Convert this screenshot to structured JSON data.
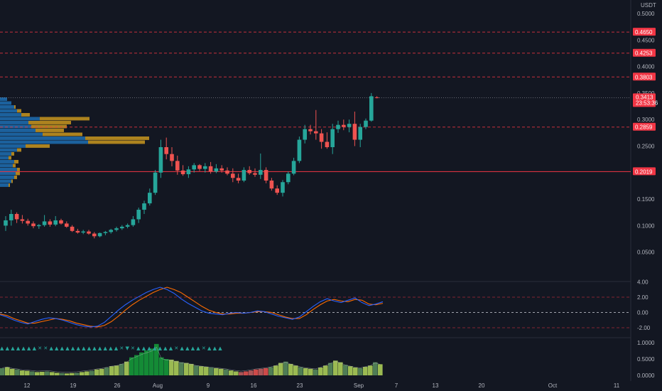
{
  "currency": "USDT",
  "colors": {
    "background": "#131722",
    "grid": "#1e222d",
    "axis_text": "#b2b5be",
    "up": "#26a69a",
    "down": "#ef5350",
    "level": "#f23645",
    "macd": "#2962ff",
    "signal": "#ff6d00",
    "vp_blue": "#1f6fb3",
    "vp_gold": "#c9961f",
    "hist_bright_green": "#15a03a",
    "hist_lime": "#b4d75a"
  },
  "price_axis": {
    "ticks": [
      "0.5000",
      "0.4500",
      "0.4000",
      "0.3500",
      "0.3000",
      "0.2500",
      "0.2000",
      "0.1500",
      "0.1000",
      "0.0500"
    ],
    "min": 0.0,
    "max": 0.5
  },
  "price_levels": [
    {
      "label": "0.4650",
      "value": 0.465,
      "style": "dashed"
    },
    {
      "label": "0.4253",
      "value": 0.4253,
      "style": "dashed"
    },
    {
      "label": "0.3803",
      "value": 0.3803,
      "style": "dashed"
    },
    {
      "label": "0.2859",
      "value": 0.2859,
      "style": "dashed"
    },
    {
      "label": "0.2019",
      "value": 0.2019,
      "style": "solid"
    }
  ],
  "current_price": {
    "label": "0.3413",
    "countdown": "23:53:36",
    "value": 0.3413
  },
  "oscillator_axis": {
    "ticks": [
      "4.00",
      "2.00",
      "0.00",
      "-2.00"
    ],
    "min": -4,
    "max": 4,
    "bands": [
      2,
      -2
    ],
    "zero": 0
  },
  "histogram_axis": {
    "ticks": [
      "1.0000",
      "0.5000",
      "0.0000"
    ],
    "min": 0,
    "max": 1
  },
  "time_axis": {
    "labels": [
      "12",
      "19",
      "26",
      "Aug",
      "9",
      "16",
      "23",
      "Sep",
      "7",
      "13",
      "20",
      "Oct",
      "11"
    ]
  },
  "chart_data": {
    "type": "candlestick",
    "description_fields": [
      "open",
      "high",
      "low",
      "close"
    ],
    "candles": [
      [
        0.1,
        0.118,
        0.09,
        0.11
      ],
      [
        0.11,
        0.13,
        0.1,
        0.122
      ],
      [
        0.122,
        0.125,
        0.105,
        0.112
      ],
      [
        0.112,
        0.12,
        0.104,
        0.109
      ],
      [
        0.109,
        0.113,
        0.1,
        0.104
      ],
      [
        0.104,
        0.108,
        0.095,
        0.099
      ],
      [
        0.099,
        0.103,
        0.094,
        0.101
      ],
      [
        0.101,
        0.12,
        0.098,
        0.108
      ],
      [
        0.108,
        0.112,
        0.098,
        0.102
      ],
      [
        0.102,
        0.118,
        0.099,
        0.11
      ],
      [
        0.11,
        0.113,
        0.102,
        0.104
      ],
      [
        0.104,
        0.108,
        0.096,
        0.098
      ],
      [
        0.098,
        0.101,
        0.088,
        0.09
      ],
      [
        0.09,
        0.094,
        0.085,
        0.087
      ],
      [
        0.087,
        0.092,
        0.084,
        0.089
      ],
      [
        0.089,
        0.092,
        0.083,
        0.085
      ],
      [
        0.085,
        0.088,
        0.076,
        0.08
      ],
      [
        0.08,
        0.087,
        0.078,
        0.086
      ],
      [
        0.086,
        0.09,
        0.082,
        0.088
      ],
      [
        0.088,
        0.094,
        0.085,
        0.092
      ],
      [
        0.092,
        0.098,
        0.089,
        0.095
      ],
      [
        0.095,
        0.101,
        0.092,
        0.098
      ],
      [
        0.098,
        0.104,
        0.095,
        0.101
      ],
      [
        0.101,
        0.118,
        0.098,
        0.112
      ],
      [
        0.112,
        0.134,
        0.105,
        0.13
      ],
      [
        0.13,
        0.147,
        0.122,
        0.142
      ],
      [
        0.142,
        0.17,
        0.138,
        0.162
      ],
      [
        0.162,
        0.205,
        0.158,
        0.2
      ],
      [
        0.2,
        0.262,
        0.19,
        0.248
      ],
      [
        0.248,
        0.266,
        0.225,
        0.235
      ],
      [
        0.235,
        0.248,
        0.212,
        0.222
      ],
      [
        0.222,
        0.232,
        0.196,
        0.204
      ],
      [
        0.204,
        0.214,
        0.194,
        0.197
      ],
      [
        0.197,
        0.212,
        0.19,
        0.206
      ],
      [
        0.206,
        0.218,
        0.2,
        0.214
      ],
      [
        0.214,
        0.216,
        0.203,
        0.207
      ],
      [
        0.207,
        0.218,
        0.2,
        0.212
      ],
      [
        0.212,
        0.22,
        0.198,
        0.202
      ],
      [
        0.202,
        0.216,
        0.199,
        0.208
      ],
      [
        0.208,
        0.214,
        0.2,
        0.204
      ],
      [
        0.204,
        0.21,
        0.195,
        0.198
      ],
      [
        0.198,
        0.208,
        0.182,
        0.19
      ],
      [
        0.19,
        0.198,
        0.18,
        0.185
      ],
      [
        0.185,
        0.21,
        0.182,
        0.205
      ],
      [
        0.205,
        0.212,
        0.196,
        0.199
      ],
      [
        0.199,
        0.208,
        0.192,
        0.196
      ],
      [
        0.196,
        0.236,
        0.188,
        0.205
      ],
      [
        0.205,
        0.21,
        0.18,
        0.185
      ],
      [
        0.185,
        0.19,
        0.166,
        0.17
      ],
      [
        0.17,
        0.176,
        0.158,
        0.162
      ],
      [
        0.162,
        0.186,
        0.155,
        0.182
      ],
      [
        0.182,
        0.202,
        0.178,
        0.198
      ],
      [
        0.198,
        0.228,
        0.195,
        0.222
      ],
      [
        0.222,
        0.268,
        0.218,
        0.262
      ],
      [
        0.262,
        0.29,
        0.255,
        0.282
      ],
      [
        0.282,
        0.29,
        0.272,
        0.278
      ],
      [
        0.278,
        0.318,
        0.262,
        0.274
      ],
      [
        0.274,
        0.282,
        0.245,
        0.258
      ],
      [
        0.258,
        0.276,
        0.245,
        0.248
      ],
      [
        0.248,
        0.292,
        0.235,
        0.282
      ],
      [
        0.282,
        0.298,
        0.275,
        0.29
      ],
      [
        0.29,
        0.3,
        0.28,
        0.286
      ],
      [
        0.286,
        0.3,
        0.276,
        0.292
      ],
      [
        0.292,
        0.315,
        0.25,
        0.262
      ],
      [
        0.262,
        0.292,
        0.248,
        0.286
      ],
      [
        0.286,
        0.302,
        0.282,
        0.298
      ],
      [
        0.298,
        0.35,
        0.296,
        0.344
      ],
      [
        0.342,
        0.344,
        0.34,
        0.3413
      ]
    ],
    "oscillator": {
      "fast": [
        -0.3,
        -0.6,
        -1.0,
        -1.3,
        -1.5,
        -1.2,
        -0.9,
        -0.7,
        -0.8,
        -1.0,
        -1.3,
        -1.6,
        -1.8,
        -1.9,
        -1.8,
        -1.3,
        -0.5,
        0.3,
        1.0,
        1.6,
        2.1,
        2.6,
        3.0,
        3.3,
        3.0,
        2.5,
        1.8,
        1.2,
        0.7,
        0.2,
        -0.1,
        -0.2,
        -0.3,
        -0.1,
        0.0,
        -0.1,
        0.0,
        0.2,
        0.1,
        -0.2,
        -0.5,
        -0.7,
        -0.9,
        -0.6,
        0.1,
        0.8,
        1.4,
        1.8,
        1.5,
        1.3,
        1.6,
        1.9,
        1.3,
        0.9,
        1.1,
        1.4
      ],
      "slow": [
        -0.2,
        -0.4,
        -0.8,
        -1.1,
        -1.4,
        -1.4,
        -1.2,
        -1.0,
        -0.8,
        -0.9,
        -1.1,
        -1.4,
        -1.6,
        -1.8,
        -1.9,
        -1.7,
        -1.2,
        -0.5,
        0.3,
        1.0,
        1.6,
        2.1,
        2.6,
        3.0,
        3.3,
        3.0,
        2.6,
        2.0,
        1.4,
        0.8,
        0.3,
        0.0,
        -0.2,
        -0.2,
        -0.1,
        -0.1,
        0.0,
        0.1,
        0.1,
        0.0,
        -0.3,
        -0.6,
        -0.8,
        -0.8,
        -0.3,
        0.4,
        1.0,
        1.5,
        1.7,
        1.5,
        1.4,
        1.7,
        1.6,
        1.1,
        1.0,
        1.2
      ]
    },
    "histogram": {
      "values": [
        0.22,
        0.25,
        0.2,
        0.18,
        0.15,
        0.14,
        0.12,
        0.1,
        0.11,
        0.12,
        0.1,
        0.08,
        0.07,
        0.06,
        0.07,
        0.08,
        0.1,
        0.12,
        0.14,
        0.18,
        0.2,
        0.24,
        0.28,
        0.3,
        0.35,
        0.42,
        0.55,
        0.62,
        0.7,
        0.76,
        0.82,
        0.96,
        0.55,
        0.5,
        0.48,
        0.44,
        0.4,
        0.38,
        0.35,
        0.3,
        0.28,
        0.26,
        0.24,
        0.22,
        0.2,
        0.18,
        0.15,
        0.12,
        0.1,
        0.12,
        0.15,
        0.18,
        0.2,
        0.22,
        0.25,
        0.3,
        0.38,
        0.42,
        0.35,
        0.3,
        0.25,
        0.22,
        0.2,
        0.18,
        0.24,
        0.3,
        0.38,
        0.45,
        0.4,
        0.32,
        0.28,
        0.24,
        0.22,
        0.26,
        0.3,
        0.4,
        0.34
      ],
      "markers_text": "▲ ▲ ▲ ▲ ▲ ▲ ▲ ✕ ✕  ▲ ▲ ▲ ▲ ▲ ▲ ▲ ▲ ▲ ▲ ▲ ▲ ▲ ✕  ▼ ✕  ▲ ▲ ▲ ▲ ▲ ▲ ▲ ✕ ▲ ▲ ▲ ▲ ✕  ▲ ▲ ▲"
    },
    "volume_profile": [
      {
        "blue": 0.05,
        "gold": 0.0
      },
      {
        "blue": 0.08,
        "gold": 0.0
      },
      {
        "blue": 0.1,
        "gold": 0.01
      },
      {
        "blue": 0.12,
        "gold": 0.03
      },
      {
        "blue": 0.15,
        "gold": 0.06
      },
      {
        "blue": 0.28,
        "gold": 0.35
      },
      {
        "blue": 0.2,
        "gold": 0.3
      },
      {
        "blue": 0.22,
        "gold": 0.25
      },
      {
        "blue": 0.25,
        "gold": 0.2
      },
      {
        "blue": 0.3,
        "gold": 0.28
      },
      {
        "blue": 0.6,
        "gold": 0.45
      },
      {
        "blue": 0.62,
        "gold": 0.4
      },
      {
        "blue": 0.18,
        "gold": 0.17
      },
      {
        "blue": 0.12,
        "gold": 0.03
      },
      {
        "blue": 0.08,
        "gold": 0.02
      },
      {
        "blue": 0.06,
        "gold": 0.02
      },
      {
        "blue": 0.1,
        "gold": 0.03
      },
      {
        "blue": 0.09,
        "gold": 0.02
      },
      {
        "blue": 0.12,
        "gold": 0.02
      },
      {
        "blue": 0.11,
        "gold": 0.03
      },
      {
        "blue": 0.1,
        "gold": 0.02
      },
      {
        "blue": 0.08,
        "gold": 0.01
      },
      {
        "blue": 0.06,
        "gold": 0.01
      }
    ]
  }
}
